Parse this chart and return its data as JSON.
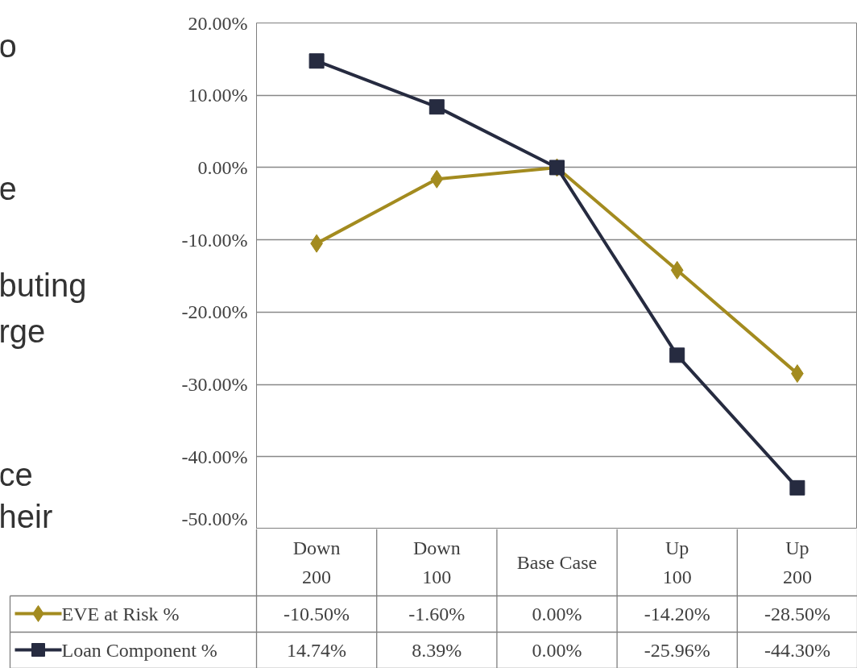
{
  "chart_data": {
    "type": "line",
    "categories": [
      "Down 200",
      "Down 100",
      "Base Case",
      "Up 100",
      "Up 200"
    ],
    "series": [
      {
        "name": "EVE at Risk %",
        "color": "#a38b1f",
        "marker": "diamond",
        "values": [
          -10.5,
          -1.6,
          0.0,
          -14.2,
          -28.5
        ],
        "value_labels": [
          "-10.50%",
          "-1.60%",
          "0.00%",
          "-14.20%",
          "-28.50%"
        ]
      },
      {
        "name": "Loan Component %",
        "color": "#262b40",
        "marker": "square",
        "values": [
          14.74,
          8.39,
          0.0,
          -25.96,
          -44.3
        ],
        "value_labels": [
          "14.74%",
          "8.39%",
          "0.00%",
          "-25.96%",
          "-44.30%"
        ]
      }
    ],
    "ylim": [
      -50,
      20
    ],
    "yticks": [
      {
        "value": 20,
        "label": "20.00%"
      },
      {
        "value": 10,
        "label": "10.00%"
      },
      {
        "value": 0,
        "label": "0.00%"
      },
      {
        "value": -10,
        "label": "-10.00%"
      },
      {
        "value": -20,
        "label": "-20.00%"
      },
      {
        "value": -30,
        "label": "-30.00%"
      },
      {
        "value": -40,
        "label": "-40.00%"
      },
      {
        "value": -50,
        "label": "-50.00%"
      }
    ],
    "grid": "y",
    "legend": "bottom",
    "line_style": "solid",
    "annotations": [
      "o",
      "e",
      "buting",
      "rge",
      "ce",
      "heir"
    ]
  }
}
